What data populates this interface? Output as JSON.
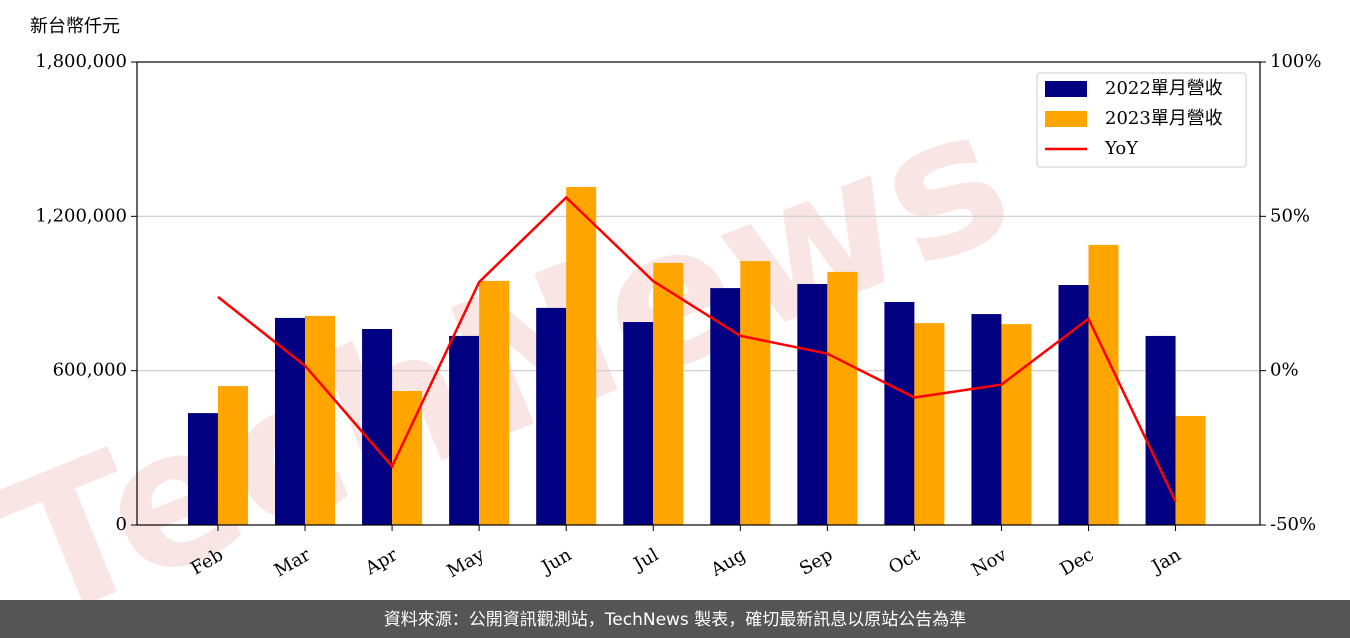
{
  "chart_data": {
    "type": "bar",
    "y_label": "新台幣仟元",
    "watermark": "TechNews",
    "footer": "資料來源：公開資訊觀測站，TechNews 製表，確切最新訊息以原站公告為準",
    "categories": [
      "Feb",
      "Mar",
      "Apr",
      "May",
      "Jun",
      "Jul",
      "Aug",
      "Sep",
      "Oct",
      "Nov",
      "Dec",
      "Jan"
    ],
    "series": [
      {
        "name": "2022單月營收",
        "color": "#000080",
        "values": [
          435000,
          805000,
          762000,
          735000,
          844000,
          789000,
          921000,
          937000,
          867000,
          820000,
          933000,
          735000
        ]
      },
      {
        "name": "2023單月營收",
        "color": "#ffa500",
        "values": [
          540000,
          813000,
          521000,
          949000,
          1314000,
          1019000,
          1026000,
          984000,
          785000,
          781000,
          1089000,
          424000
        ]
      },
      {
        "name": "YoY",
        "type": "line",
        "axis": "y2",
        "color": "#ff0000",
        "values": [
          23.9,
          1.6,
          -31,
          28.7,
          56.1,
          29,
          11.3,
          5.5,
          -8.7,
          -4.5,
          16.8,
          -42.3
        ]
      }
    ],
    "ylim": [
      0,
      1800000
    ],
    "yticks": [
      {
        "value": 0,
        "label": "0"
      },
      {
        "value": 600000,
        "label": "600,000"
      },
      {
        "value": 1200000,
        "label": "1,200,000"
      },
      {
        "value": 1800000,
        "label": "1,800,000"
      }
    ],
    "y2lim": [
      -50,
      100
    ],
    "y2ticks": [
      {
        "value": -50,
        "label": "-50%"
      },
      {
        "value": 0,
        "label": "0%"
      },
      {
        "value": 50,
        "label": "50%"
      },
      {
        "value": 100,
        "label": "100%"
      }
    ],
    "grid": true,
    "legend": "upper right"
  }
}
